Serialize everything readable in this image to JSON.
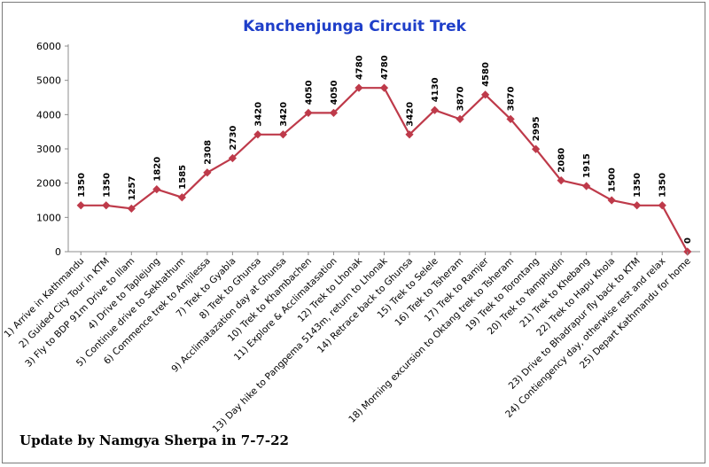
{
  "chart_data": {
    "type": "line",
    "title": "Kanchenjunga Circuit Trek",
    "xlabel": "",
    "ylabel": "",
    "ylim": [
      0,
      6000
    ],
    "yticks": [
      0,
      1000,
      2000,
      3000,
      4000,
      5000,
      6000
    ],
    "grid": false,
    "legend": "none",
    "line_color": "#be3a4a",
    "categories": [
      "1) Arrive in Kathmandu",
      "2) Guided City Tour in KTM",
      "3) Fly to BDP 91m Drive to Illam",
      "4) Drive to Taplejung",
      "5) Continue drive to Sekhathum",
      "6) Commence trek to Amjilessa",
      "7) Trek to Gyabla",
      "8) Trek to Ghunsa",
      "9) Acclimatazation day at Ghunsa",
      "10) Trek to Khambachen",
      "11) Explore & Acclimatasation",
      "12) Trek to Lhonak",
      "13) Day hike to Pangpema 5143m, return to Lhonak",
      "14) Retrace back to Ghunsa",
      "15) Trek to Selele",
      "16) Trek to Tsheram",
      "17) Trek to Ramjer",
      "18) Morning excursion to Oktang trek to Tsheram",
      "19) Trek to Torontang",
      "20) Trek to Yamphudin",
      "21) Trek to Khebang",
      "22) Trek to Hapu Khola",
      "23) Drive to Bhadrapur fly back to KTM",
      "24) Contiengency day, otherwise rest and relax",
      "25) Depart Kathmandu for home"
    ],
    "values": [
      1350,
      1350,
      1257,
      1820,
      1585,
      2308,
      2730,
      3420,
      3420,
      4050,
      4050,
      4780,
      4780,
      3420,
      4130,
      3870,
      4580,
      3870,
      2995,
      2080,
      1915,
      1500,
      1350,
      1350,
      0
    ]
  },
  "footer": {
    "text": "Update by Namgya Sherpa in  7-7-22"
  }
}
